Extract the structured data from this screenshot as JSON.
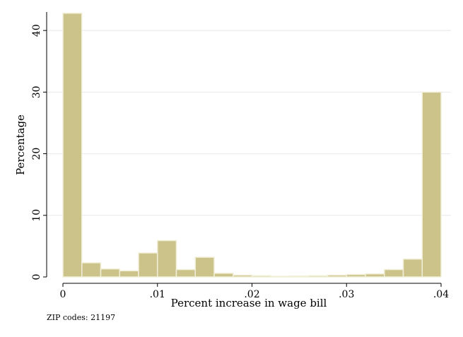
{
  "chart_data": {
    "type": "bar",
    "title": "",
    "xlabel": "Percent increase in wage bill",
    "ylabel": "Percentage",
    "note": "ZIP codes: 21197",
    "xlim": [
      0,
      0.04
    ],
    "ylim": [
      0,
      43
    ],
    "xticks": [
      0,
      0.01,
      0.02,
      0.03,
      0.04
    ],
    "xtick_labels": [
      "0",
      ".01",
      ".02",
      ".03",
      ".04"
    ],
    "yticks": [
      0,
      10,
      20,
      30,
      40
    ],
    "ytick_labels": [
      "0",
      "10",
      "20",
      "30",
      "40"
    ],
    "grid": true,
    "bar_color": "#cbc38a",
    "bar_edge_color": "#f2efd9",
    "bin_width": 0.002,
    "bins": [
      {
        "x0": 0.0,
        "x1": 0.002,
        "value": 42.8
      },
      {
        "x0": 0.002,
        "x1": 0.004,
        "value": 2.3
      },
      {
        "x0": 0.004,
        "x1": 0.006,
        "value": 1.3
      },
      {
        "x0": 0.006,
        "x1": 0.008,
        "value": 1.0
      },
      {
        "x0": 0.008,
        "x1": 0.01,
        "value": 3.9
      },
      {
        "x0": 0.01,
        "x1": 0.012,
        "value": 5.9
      },
      {
        "x0": 0.012,
        "x1": 0.014,
        "value": 1.2
      },
      {
        "x0": 0.014,
        "x1": 0.016,
        "value": 3.2
      },
      {
        "x0": 0.016,
        "x1": 0.018,
        "value": 0.6
      },
      {
        "x0": 0.018,
        "x1": 0.02,
        "value": 0.3
      },
      {
        "x0": 0.02,
        "x1": 0.022,
        "value": 0.2
      },
      {
        "x0": 0.022,
        "x1": 0.024,
        "value": 0.1
      },
      {
        "x0": 0.024,
        "x1": 0.026,
        "value": 0.15
      },
      {
        "x0": 0.026,
        "x1": 0.028,
        "value": 0.2
      },
      {
        "x0": 0.028,
        "x1": 0.03,
        "value": 0.3
      },
      {
        "x0": 0.03,
        "x1": 0.032,
        "value": 0.4
      },
      {
        "x0": 0.032,
        "x1": 0.034,
        "value": 0.5
      },
      {
        "x0": 0.034,
        "x1": 0.036,
        "value": 1.2
      },
      {
        "x0": 0.036,
        "x1": 0.038,
        "value": 2.9
      },
      {
        "x0": 0.038,
        "x1": 0.04,
        "value": 30.0
      }
    ]
  }
}
